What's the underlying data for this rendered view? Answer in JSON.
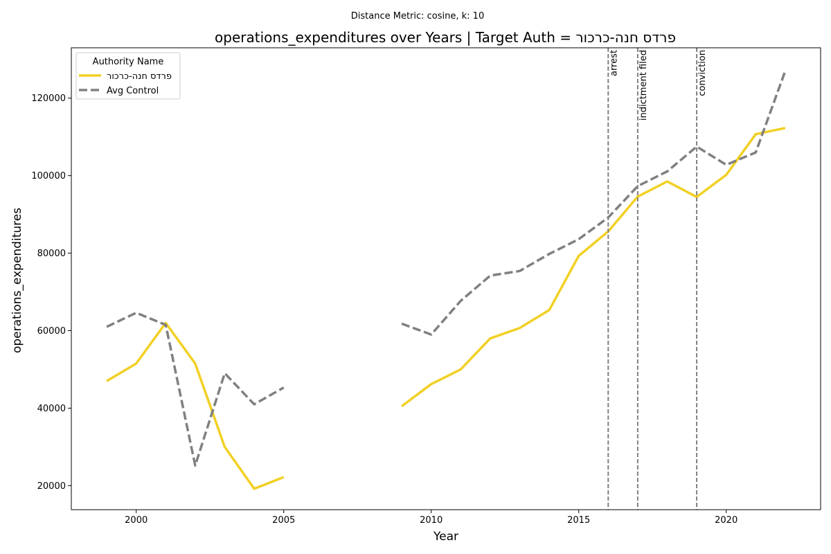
{
  "chart_data": {
    "type": "line",
    "suptitle": "Distance Metric: cosine, k: 10",
    "title": "operations_expenditures over Years | Target Auth = פרדס חנה-כרכור",
    "xlabel": "Year",
    "ylabel": "operations_expenditures",
    "xlim": [
      1997.8,
      2023.2
    ],
    "ylim": [
      13800,
      133000
    ],
    "xticks": [
      2000,
      2005,
      2010,
      2015,
      2020
    ],
    "yticks": [
      20000,
      40000,
      60000,
      80000,
      100000,
      120000
    ],
    "grid": false,
    "legend": {
      "title": "Authority Name",
      "placement": "top-left"
    },
    "series": [
      {
        "name": "פרדס חנה-כרכור",
        "color": "#f2d024",
        "style": "solid",
        "x": [
          1999,
          2000,
          2001,
          2002,
          2003,
          2004,
          2005,
          2006,
          2007,
          2008,
          2009,
          2010,
          2011,
          2012,
          2013,
          2014,
          2015,
          2016,
          2017,
          2018,
          2019,
          2020,
          2021,
          2022
        ],
        "values": [
          47000,
          51500,
          62000,
          51500,
          30000,
          19200,
          22200,
          null,
          null,
          null,
          40500,
          46200,
          50000,
          58000,
          60700,
          65300,
          79300,
          85600,
          94600,
          98500,
          94500,
          100200,
          110700,
          112300
        ]
      },
      {
        "name": "Avg Control",
        "color": "#808080",
        "style": "dashed",
        "x": [
          1999,
          2000,
          2001,
          2002,
          2003,
          2004,
          2005,
          2006,
          2007,
          2008,
          2009,
          2010,
          2011,
          2012,
          2013,
          2014,
          2015,
          2016,
          2017,
          2018,
          2019,
          2020,
          2021,
          2022
        ],
        "values": [
          61000,
          64600,
          61500,
          25200,
          49000,
          41000,
          45300,
          null,
          null,
          null,
          61800,
          59000,
          67700,
          74200,
          75400,
          79800,
          83600,
          89200,
          97300,
          101100,
          107500,
          102800,
          106000,
          127000
        ]
      }
    ],
    "annotations": [
      {
        "x": 2016,
        "label": "arrest"
      },
      {
        "x": 2017,
        "label": "indictment filed"
      },
      {
        "x": 2019,
        "label": "conviction"
      }
    ]
  }
}
